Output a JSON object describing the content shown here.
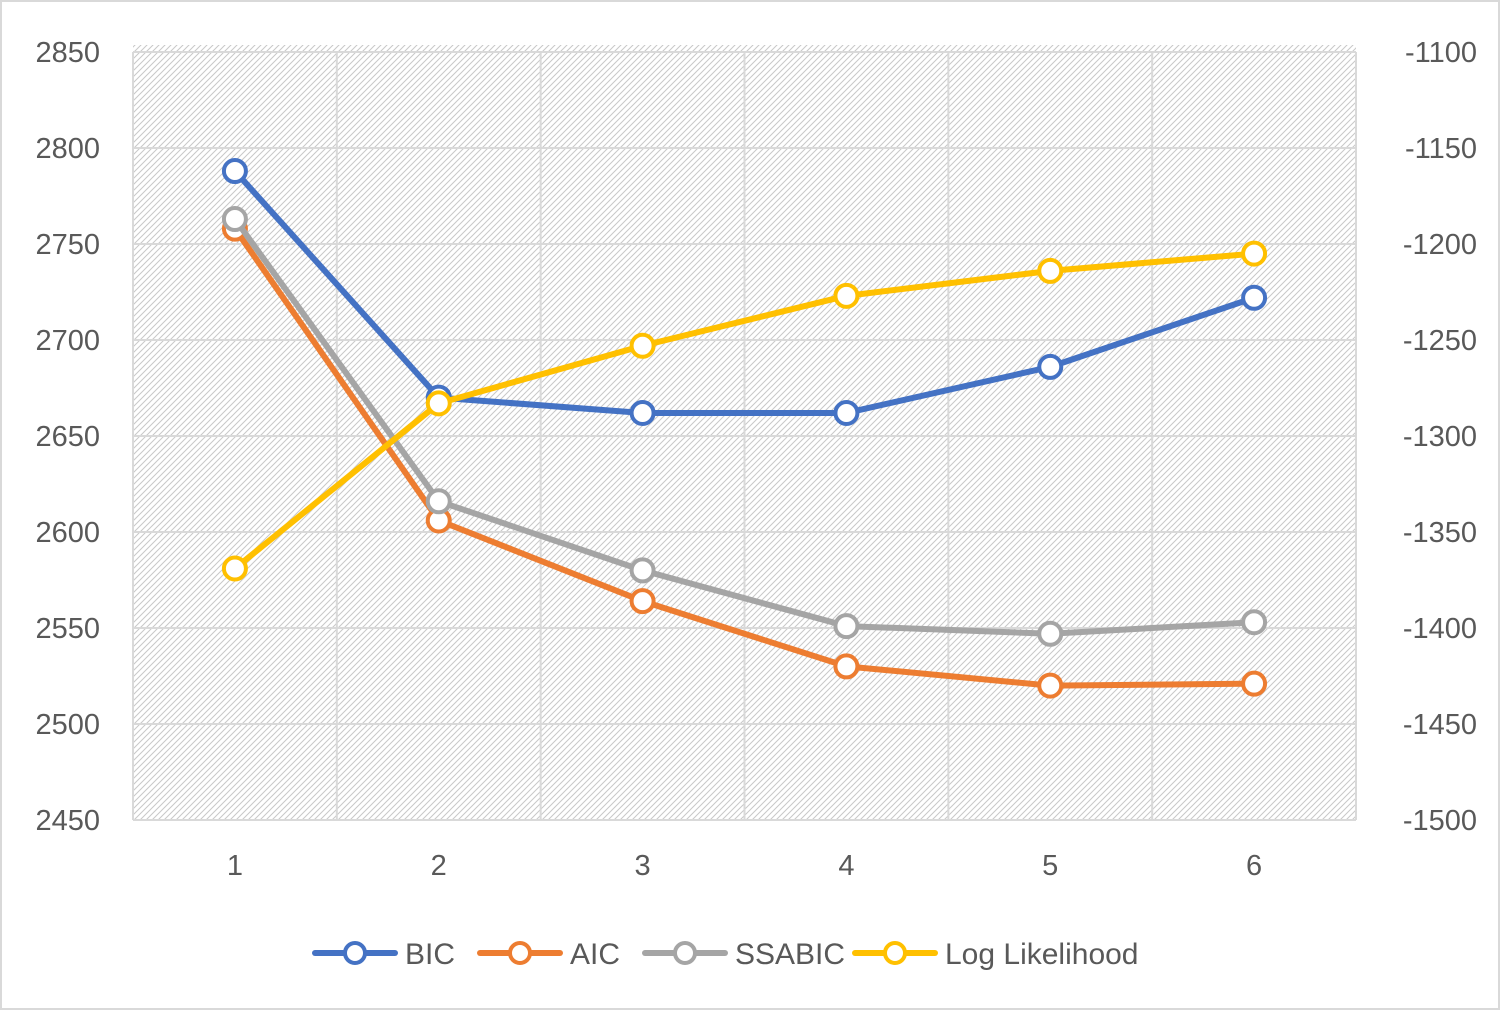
{
  "chart_data": {
    "type": "line",
    "title": "",
    "xlabel": "",
    "ylabel": "",
    "categories": [
      "1",
      "2",
      "3",
      "4",
      "5",
      "6"
    ],
    "y_left": {
      "ylim": [
        2450,
        2850
      ],
      "ticks": [
        2850,
        2800,
        2750,
        2700,
        2650,
        2600,
        2550,
        2500,
        2450
      ]
    },
    "y_right": {
      "ylim": [
        -1500,
        -1100
      ],
      "ticks": [
        -1100,
        -1150,
        -1200,
        -1250,
        -1300,
        -1350,
        -1400,
        -1450,
        -1500
      ]
    },
    "grid": true,
    "legend_position": "bottom",
    "series": [
      {
        "name": "BIC",
        "axis": "left",
        "color": "#4472C4",
        "values": [
          2788,
          2670,
          2662,
          2662,
          2686,
          2722
        ]
      },
      {
        "name": "AIC",
        "axis": "left",
        "color": "#ED7D31",
        "values": [
          2758,
          2606,
          2564,
          2530,
          2520,
          2521
        ]
      },
      {
        "name": "SSABIC",
        "axis": "left",
        "color": "#A5A5A5",
        "values": [
          2763,
          2616,
          2580,
          2551,
          2547,
          2553
        ]
      },
      {
        "name": "Log Likelihood",
        "axis": "right",
        "color": "#FFC000",
        "values": [
          -1369,
          -1283,
          -1253,
          -1227,
          -1214,
          -1205
        ]
      }
    ]
  }
}
